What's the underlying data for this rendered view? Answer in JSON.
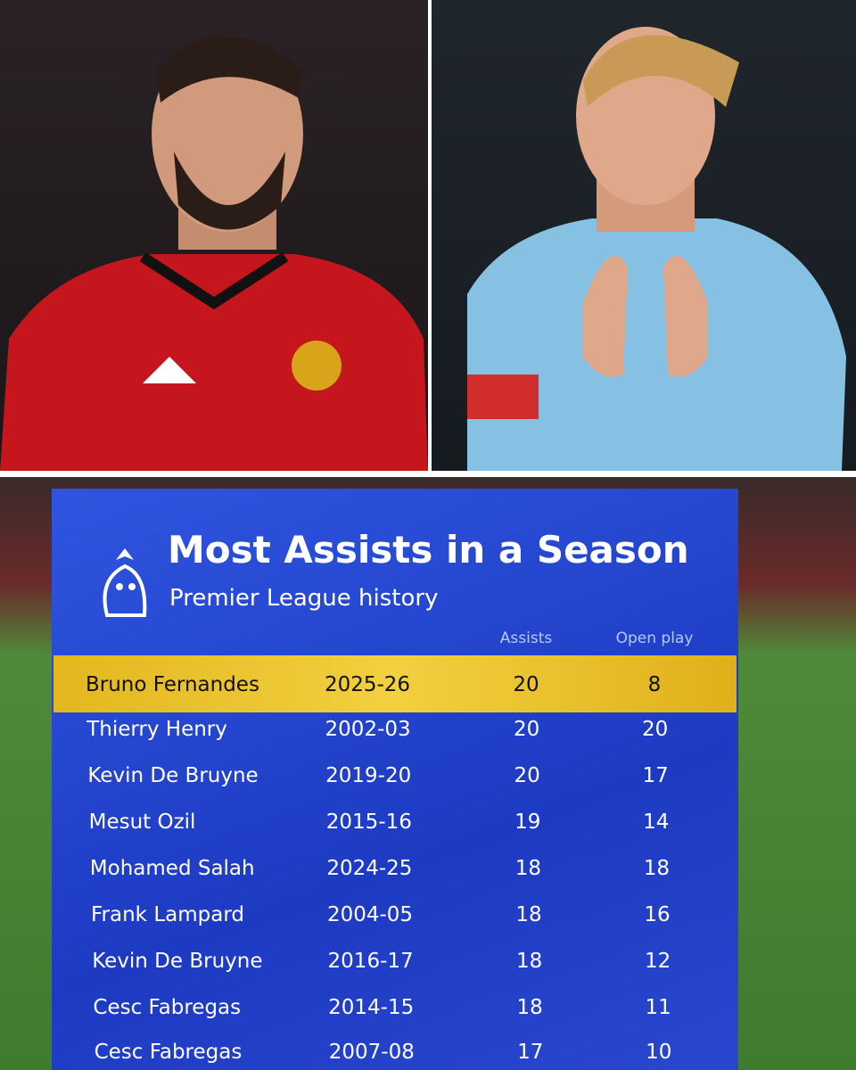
{
  "header": {
    "title": "Most Assists in a Season",
    "subtitle": "Premier League history"
  },
  "table": {
    "columns": [
      "Assists",
      "Open play"
    ],
    "rows": [
      [
        "Bruno Fernandes",
        "2025-26",
        20,
        8
      ],
      [
        "Thierry Henry",
        "2002-03",
        20,
        20
      ],
      [
        "Kevin De Bruyne",
        "2019-20",
        20,
        17
      ],
      [
        "Mesut Ozil",
        "2015-16",
        19,
        14
      ],
      [
        "Mohamed Salah",
        "2024-25",
        18,
        18
      ],
      [
        "Frank Lampard",
        "2004-05",
        18,
        16
      ],
      [
        "Kevin De Bruyne",
        "2016-17",
        18,
        12
      ],
      [
        "Cesc Fabregas",
        "2014-15",
        18,
        11
      ],
      [
        "Cesc Fabregas",
        "2007-08",
        17,
        10
      ]
    ]
  }
}
